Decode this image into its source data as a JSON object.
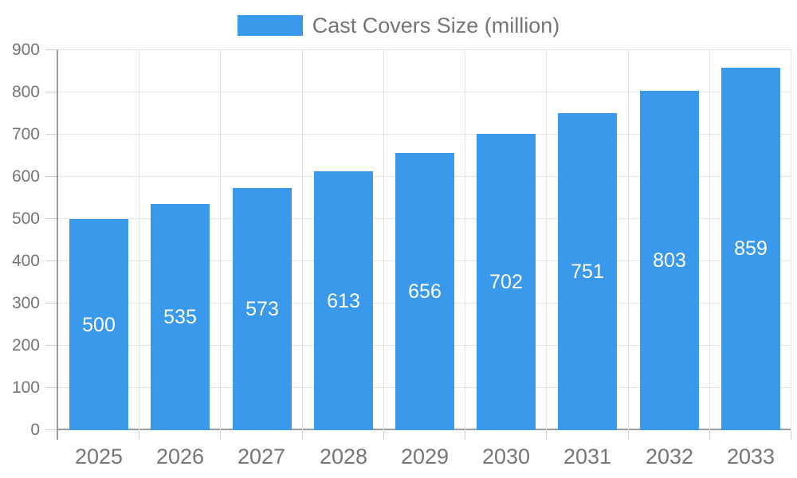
{
  "chart_data": {
    "type": "bar",
    "title": "Cast Covers Size (million)",
    "legend_entries": [
      "Cast Covers Size (million)"
    ],
    "legend_position": "top-center",
    "categories": [
      "2025",
      "2026",
      "2027",
      "2028",
      "2029",
      "2030",
      "2031",
      "2032",
      "2033"
    ],
    "series": [
      {
        "name": "Cast Covers Size (million)",
        "values": [
          500,
          535,
          573,
          613,
          656,
          702,
          751,
          803,
          859
        ]
      }
    ],
    "xlabel": "",
    "ylabel": "",
    "ylim": [
      0,
      900
    ],
    "yticks": [
      0,
      100,
      200,
      300,
      400,
      500,
      600,
      700,
      800,
      900
    ],
    "grid": "on",
    "bar_value_labels_shown": true,
    "colors": {
      "bar": "#3b99ec",
      "bar_value_label": "#ffffff",
      "axis_text": "#757575",
      "grid_line": "#e4e4e4",
      "axis_line": "#9c9c9c",
      "tick_line": "#cfcfcf",
      "background": "#ffffff"
    }
  }
}
